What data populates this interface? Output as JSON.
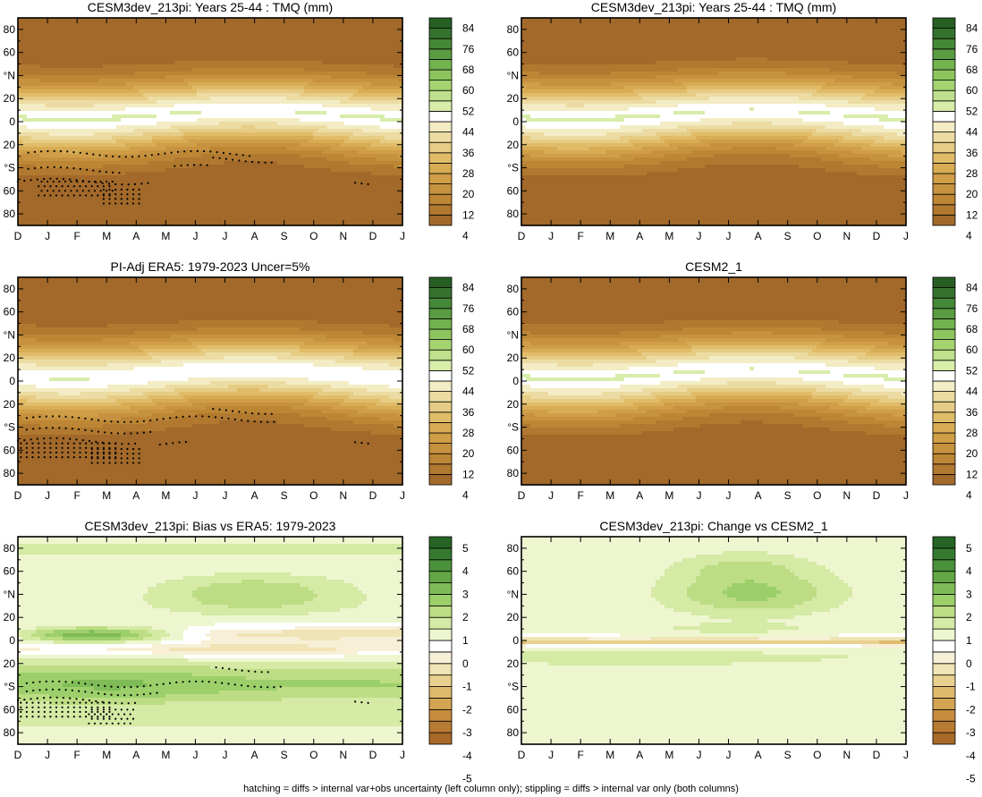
{
  "footer": "hatching = diffs > internal var+obs uncertainty (left column only); stippling = diffs > internal var only (both columns)",
  "palettes": {
    "tmq": [
      "#a2692a",
      "#b1782f",
      "#bd8635",
      "#c6923f",
      "#cf9e46",
      "#d8ac55",
      "#e1bc68",
      "#e6cc85",
      "#ecdca3",
      "#f3ecc4",
      "#ffffff",
      "#d8edaa",
      "#bfe08c",
      "#a5d370",
      "#8cc55d",
      "#72b34e",
      "#5a9c42",
      "#458837",
      "#34722e",
      "#275e24"
    ],
    "diff": [
      "#a76a28",
      "#b87b33",
      "#c78d3e",
      "#d5a452",
      "#dfba6d",
      "#e8d08e",
      "#f0e3b5",
      "#f7f0d7",
      "#ffffff",
      "#edf6cf",
      "#d5eaa5",
      "#bcdd84",
      "#9ccf6a",
      "#7fbc57",
      "#63a747",
      "#4a913b",
      "#357a2f",
      "#276424"
    ]
  },
  "panels": [
    {
      "title": "CESM3dev_213pi: Years 25-44 : TMQ (mm)",
      "kind": "tmq",
      "variant": 0,
      "stipple": [
        [
          0.35,
          8,
          -28
        ],
        [
          0.35,
          3.5,
          -42
        ],
        [
          0.0,
          4.5,
          -52
        ],
        [
          5.3,
          6.6,
          -40
        ],
        [
          6.6,
          8.7,
          -33
        ],
        [
          11.4,
          12.0,
          -55
        ]
      ],
      "hatch": [
        [
          0.7,
          3.2,
          -58
        ],
        [
          2.8,
          4.1,
          -65
        ]
      ],
      "chart_data": {
        "type": "heatmap",
        "title": "CESM3dev_213pi: Years 25-44 : TMQ (mm)",
        "x": [
          "D",
          "J",
          "F",
          "M",
          "A",
          "M",
          "J",
          "J",
          "A",
          "S",
          "O",
          "N",
          "D",
          "J"
        ],
        "y": [
          "80",
          "60",
          "°N",
          "20",
          "0",
          "20",
          "°S",
          "60",
          "80"
        ],
        "colorbar": {
          "labels": [
            "84",
            "76",
            "68",
            "60",
            "52",
            "44",
            "36",
            "28",
            "20",
            "12",
            "4"
          ],
          "min": 0,
          "max": 88,
          "step": 4
        }
      }
    },
    {
      "title": "CESM3dev_213pi: Years 25-44 : TMQ (mm)",
      "kind": "tmq",
      "variant": 1,
      "stipple": [],
      "hatch": [],
      "chart_data": {
        "type": "heatmap",
        "title": "CESM3dev_213pi: Years 25-44 : TMQ (mm)",
        "x": [
          "D",
          "J",
          "F",
          "M",
          "A",
          "M",
          "J",
          "J",
          "A",
          "S",
          "O",
          "N",
          "D",
          "J"
        ],
        "y": [
          "80",
          "60",
          "°N",
          "20",
          "0",
          "20",
          "°S",
          "60",
          "80"
        ],
        "colorbar": {
          "labels": [
            "84",
            "76",
            "68",
            "60",
            "52",
            "44",
            "36",
            "28",
            "20",
            "12",
            "4"
          ],
          "min": 0,
          "max": 88,
          "step": 4
        }
      }
    },
    {
      "title": "PI-Adj ERA5: 1979-2023 Uncer=5%",
      "kind": "tmq",
      "variant": 2,
      "stipple": [
        [
          0.3,
          8.7,
          -33
        ],
        [
          0.3,
          4.7,
          -43
        ],
        [
          0.0,
          4.0,
          -52
        ],
        [
          4.8,
          5.7,
          -55
        ],
        [
          6.6,
          8.7,
          -26
        ],
        [
          11.4,
          12.0,
          -55
        ]
      ],
      "hatch": [
        [
          0.0,
          3.3,
          -60
        ],
        [
          2.4,
          4.1,
          -65
        ]
      ],
      "chart_data": {
        "type": "heatmap",
        "title": "PI-Adj ERA5: 1979-2023 Uncer=5%",
        "x": [
          "D",
          "J",
          "F",
          "M",
          "A",
          "M",
          "J",
          "J",
          "A",
          "S",
          "O",
          "N",
          "D",
          "J"
        ],
        "y": [
          "80",
          "60",
          "°N",
          "20",
          "0",
          "20",
          "°S",
          "60",
          "80"
        ],
        "colorbar": {
          "labels": [
            "84",
            "76",
            "68",
            "60",
            "52",
            "44",
            "36",
            "28",
            "20",
            "12",
            "4"
          ],
          "min": 0,
          "max": 88,
          "step": 4
        }
      }
    },
    {
      "title": "CESM2_1",
      "kind": "tmq",
      "variant": 3,
      "stipple": [],
      "hatch": [],
      "chart_data": {
        "type": "heatmap",
        "title": "CESM2_1",
        "x": [
          "D",
          "J",
          "F",
          "M",
          "A",
          "M",
          "J",
          "J",
          "A",
          "S",
          "O",
          "N",
          "D",
          "J"
        ],
        "y": [
          "80",
          "60",
          "°N",
          "20",
          "0",
          "20",
          "°S",
          "60",
          "80"
        ],
        "colorbar": {
          "labels": [
            "84",
            "76",
            "68",
            "60",
            "52",
            "44",
            "36",
            "28",
            "20",
            "12",
            "4"
          ],
          "min": 0,
          "max": 88,
          "step": 4
        }
      }
    },
    {
      "title": "CESM3dev_213pi: Bias vs ERA5: 1979-2023",
      "kind": "bias",
      "stipple": [
        [
          0.3,
          9.0,
          -38
        ],
        [
          0.3,
          4.9,
          -45
        ],
        [
          0.0,
          4.0,
          -52
        ],
        [
          6.7,
          8.6,
          -25
        ],
        [
          11.4,
          12.0,
          -55
        ]
      ],
      "hatch": [
        [
          0.0,
          3.2,
          -60
        ],
        [
          2.4,
          4.0,
          -66
        ]
      ],
      "chart_data": {
        "type": "heatmap",
        "title": "CESM3dev_213pi: Bias vs ERA5: 1979-2023",
        "x": [
          "D",
          "J",
          "F",
          "M",
          "A",
          "M",
          "J",
          "J",
          "A",
          "S",
          "O",
          "N",
          "D",
          "J"
        ],
        "y": [
          "80",
          "60",
          "°N",
          "20",
          "0",
          "20",
          "°S",
          "60",
          "80"
        ],
        "colorbar": {
          "labels": [
            "5",
            "4",
            "3",
            "2",
            "1",
            "0",
            "-1",
            "-2",
            "-3",
            "-4",
            "-5"
          ],
          "min": -5.5,
          "max": 5.5,
          "step": 0.5
        }
      }
    },
    {
      "title": "CESM3dev_213pi: Change vs CESM2_1",
      "kind": "change",
      "stipple": [],
      "hatch": [],
      "chart_data": {
        "type": "heatmap",
        "title": "CESM3dev_213pi: Change vs CESM2_1",
        "x": [
          "D",
          "J",
          "F",
          "M",
          "A",
          "M",
          "J",
          "J",
          "A",
          "S",
          "O",
          "N",
          "D",
          "J"
        ],
        "y": [
          "80",
          "60",
          "°N",
          "20",
          "0",
          "20",
          "°S",
          "60",
          "80"
        ],
        "colorbar": {
          "labels": [
            "5",
            "4",
            "3",
            "2",
            "1",
            "0",
            "-1",
            "-2",
            "-3",
            "-4",
            "-5"
          ],
          "min": -5.5,
          "max": 5.5,
          "step": 0.5
        }
      }
    }
  ]
}
